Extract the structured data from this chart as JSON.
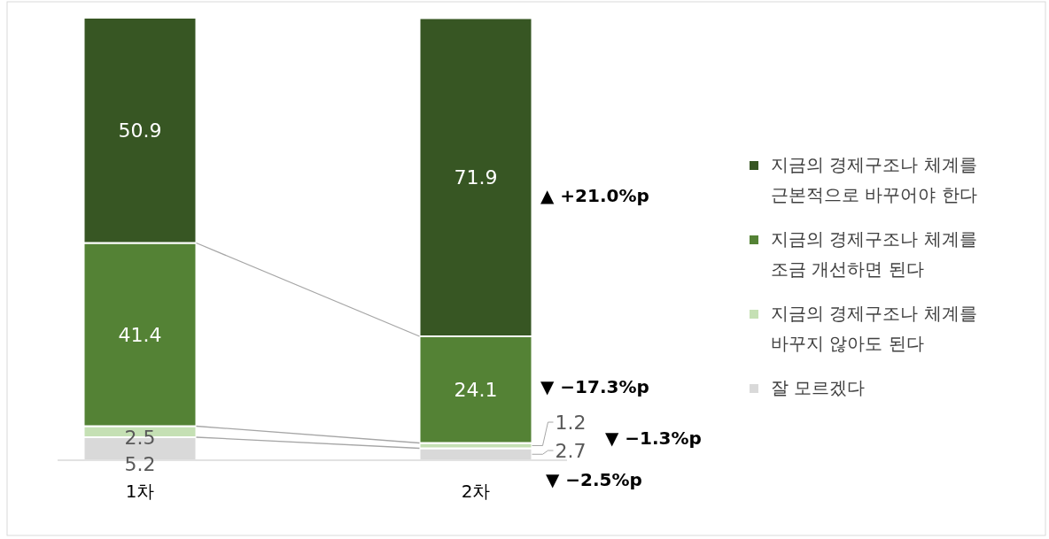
{
  "chart_data": {
    "type": "bar",
    "stacked": true,
    "categories": [
      "1차",
      "2차"
    ],
    "series": [
      {
        "name": "잘 모르겠다",
        "color": "#d9d9d9",
        "values": [
          5.2,
          2.7
        ]
      },
      {
        "name": "지금의 경제구조나 체계를 바꾸지 않아도 된다",
        "color": "#c5e0b4",
        "values": [
          2.5,
          1.2
        ]
      },
      {
        "name": "지금의 경제구조나 체계를 조금 개선하면 된다",
        "color": "#548235",
        "values": [
          41.4,
          24.1
        ]
      },
      {
        "name": "지금의 경제구조나 체계를 근본적으로 바꾸어야 한다",
        "color": "#375623",
        "values": [
          50.9,
          71.9
        ]
      }
    ],
    "data_labels": true,
    "legend": "right",
    "annotations": [
      "▲ +21.0%p",
      "▼ −17.3%p",
      "▼ −1.3%p",
      "▼ −2.5%p"
    ]
  }
}
